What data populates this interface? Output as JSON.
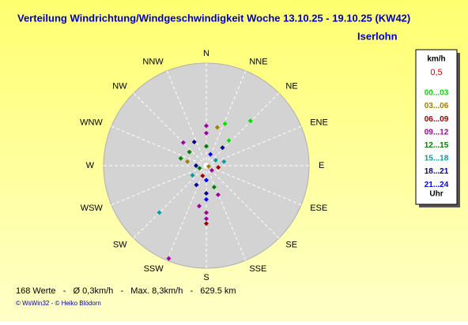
{
  "chart_data": {
    "type": "polar-scatter",
    "title": "Verteilung Windrichtung/Windgeschwindigkeit  Woche 13.10.25 - 19.10.25 (KW42)",
    "subtitle": "Iserlohn",
    "directions": [
      "N",
      "NNE",
      "NE",
      "ENE",
      "E",
      "ESE",
      "SE",
      "SSE",
      "S",
      "SSW",
      "SW",
      "WSW",
      "W",
      "WNW",
      "NW",
      "NNW"
    ],
    "rlim": [
      0,
      8.5
    ],
    "legend_unit": "km/h",
    "legend_scale": "0,5",
    "legend_footer": "Uhr",
    "series": [
      {
        "name": "00...03",
        "color": "#00e000",
        "direction": [
          44.5,
          24,
          42
        ],
        "speed": [
          5.2,
          3.8,
          2.8
        ]
      },
      {
        "name": "03...06",
        "color": "#a08000",
        "direction": [
          16,
          282,
          110
        ],
        "speed": [
          3.3,
          1.6,
          0.2
        ]
      },
      {
        "name": "06...09",
        "color": "#a00000",
        "direction": [
          180,
          98,
          200
        ],
        "speed": [
          4.8,
          1.0,
          0.9
        ]
      },
      {
        "name": "09...12",
        "color": "#a000a0",
        "direction": [
          202,
          0,
          0,
          315,
          180,
          180,
          158,
          190,
          130
        ],
        "speed": [
          8.3,
          3.3,
          2.7,
          2.7,
          3.9,
          4.4,
          2.6,
          3.4,
          0.6
        ]
      },
      {
        "name": "12...15",
        "color": "#008000",
        "direction": [
          0,
          309,
          286,
          160,
          250
        ],
        "speed": [
          1.6,
          1.8,
          2.2,
          1.9,
          0.6
        ]
      },
      {
        "name": "15...18",
        "color": "#00a0a0",
        "direction": [
          225,
          235,
          77,
          60
        ],
        "speed": [
          5.5,
          1.4,
          1.5,
          0.9
        ]
      },
      {
        "name": "18...21",
        "color": "#000090",
        "direction": [
          333,
          180,
          207,
          270,
          42
        ],
        "speed": [
          2.2,
          2.3,
          1.8,
          0.85,
          2.0
        ]
      },
      {
        "name": "21...24",
        "color": "#0000ff",
        "direction": [
          180,
          180,
          20
        ],
        "speed": [
          1.2,
          2.8,
          1.0
        ]
      }
    ],
    "stats": "168 Werte   -   Ø 0,3km/h   -   Max. 8,3km/h   -   629.5 km",
    "footer": "© WsWin32  -  © Heiko Blödorn"
  }
}
